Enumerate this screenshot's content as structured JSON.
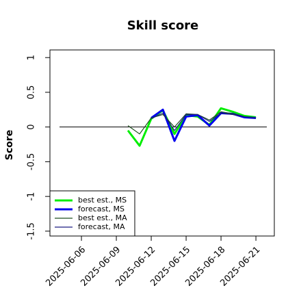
{
  "chart_data": {
    "type": "line",
    "title": "Skill score",
    "y_label": "Score",
    "x": [
      "2025-06-10",
      "2025-06-11",
      "2025-06-12",
      "2025-06-13",
      "2025-06-14",
      "2025-06-15",
      "2025-06-16",
      "2025-06-17",
      "2025-06-18",
      "2025-06-19",
      "2025-06-20",
      "2025-06-21"
    ],
    "series": [
      {
        "name": "best est., MS",
        "color": "#00ee00",
        "width": 3,
        "values": [
          -0.05,
          -0.27,
          0.12,
          0.24,
          -0.1,
          0.17,
          0.15,
          0.03,
          0.27,
          0.22,
          0.16,
          0.14
        ]
      },
      {
        "name": "forecast, MS",
        "color": "#0000ee",
        "width": 3,
        "values": [
          null,
          null,
          0.13,
          0.25,
          -0.2,
          0.15,
          0.17,
          0.02,
          0.2,
          0.19,
          0.14,
          0.13
        ]
      },
      {
        "name": "best est., MA",
        "color": "#1f4f1f",
        "width": 1.2,
        "values": [
          0.02,
          -0.1,
          0.13,
          0.18,
          0.0,
          0.19,
          0.18,
          0.1,
          0.22,
          0.19,
          0.15,
          0.13
        ]
      },
      {
        "name": "forecast, MA",
        "color": "#1a1a80",
        "width": 1.2,
        "values": [
          null,
          null,
          0.12,
          0.2,
          -0.05,
          0.18,
          0.18,
          0.08,
          0.2,
          0.18,
          0.15,
          0.13
        ]
      }
    ],
    "xlim": [
      "2025-06-03T07:00",
      "2025-06-22T14:00"
    ],
    "xticks": [
      "2025-06-06",
      "2025-06-09",
      "2025-06-12",
      "2025-06-15",
      "2025-06-18",
      "2025-06-21"
    ],
    "xtick_colors": [
      "#000000",
      "#000000",
      "#2e8b2e",
      "#000000",
      "#000000",
      "#000000"
    ],
    "ylim": [
      -1.57,
      1.11
    ],
    "yticks": [
      -1.5,
      -1.0,
      -0.5,
      0.0,
      0.5,
      1.0
    ],
    "reference_line": 0,
    "legend": "bottom-left"
  }
}
